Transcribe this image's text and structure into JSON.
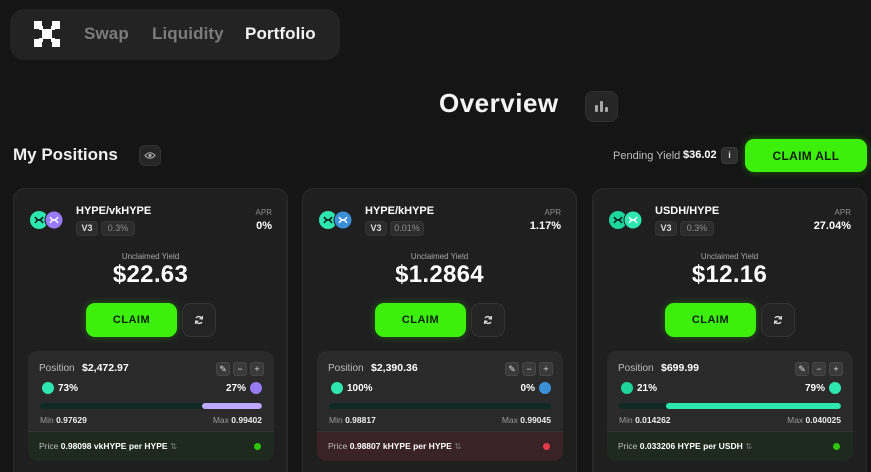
{
  "nav": {
    "links": [
      "Swap",
      "Liquidity",
      "Portfolio"
    ],
    "active": "Portfolio"
  },
  "overview": {
    "title": "Overview"
  },
  "positions_header": {
    "title": "My Positions",
    "pending_label": "Pending Yield",
    "pending_value": "$36.02",
    "info_icon": "i",
    "claim_all_label": "CLAIM ALL"
  },
  "cards": [
    {
      "pair": "HYPE/vkHYPE",
      "version": "V3",
      "fee": "0.3%",
      "apr_label": "APR",
      "apr": "0%",
      "unclaimed_label": "Unclaimed Yield",
      "unclaimed": "$22.63",
      "claim_label": "CLAIM",
      "position_label": "Position",
      "position_value": "$2,472.97",
      "left_pct": "73%",
      "right_pct": "27%",
      "right_share": 0.27,
      "min_label": "Min",
      "min": "0.97629",
      "max_label": "Max",
      "max": "0.99402",
      "price_label": "Price",
      "price_value": "0.98098",
      "price_unit": "vkHYPE per HYPE",
      "in_range": true,
      "colors": {
        "left": "#2ee6b0",
        "right": "#9a7bf5",
        "fill": "#bda8ff"
      }
    },
    {
      "pair": "HYPE/kHYPE",
      "version": "V3",
      "fee": "0.01%",
      "apr_label": "APR",
      "apr": "1.17%",
      "unclaimed_label": "Unclaimed Yield",
      "unclaimed": "$1.2864",
      "claim_label": "CLAIM",
      "position_label": "Position",
      "position_value": "$2,390.36",
      "left_pct": "100%",
      "right_pct": "0%",
      "right_share": 0,
      "min_label": "Min",
      "min": "0.98817",
      "max_label": "Max",
      "max": "0.99045",
      "price_label": "Price",
      "price_value": "0.98807",
      "price_unit": "kHYPE per HYPE",
      "in_range": false,
      "colors": {
        "left": "#2ee6b0",
        "right": "#3b8fd8",
        "fill": "#2ee6b0"
      }
    },
    {
      "pair": "USDH/HYPE",
      "version": "V3",
      "fee": "0.3%",
      "apr_label": "APR",
      "apr": "27.04%",
      "unclaimed_label": "Unclaimed Yield",
      "unclaimed": "$12.16",
      "claim_label": "CLAIM",
      "position_label": "Position",
      "position_value": "$699.99",
      "left_pct": "21%",
      "right_pct": "79%",
      "right_share": 0.79,
      "min_label": "Min",
      "min": "0.014262",
      "max_label": "Max",
      "max": "0.040025",
      "price_label": "Price",
      "price_value": "0.033206",
      "price_unit": "HYPE per USDH",
      "in_range": true,
      "colors": {
        "left": "#1fd69a",
        "right": "#2ee6b0",
        "fill": "#2ee6b0"
      }
    }
  ]
}
